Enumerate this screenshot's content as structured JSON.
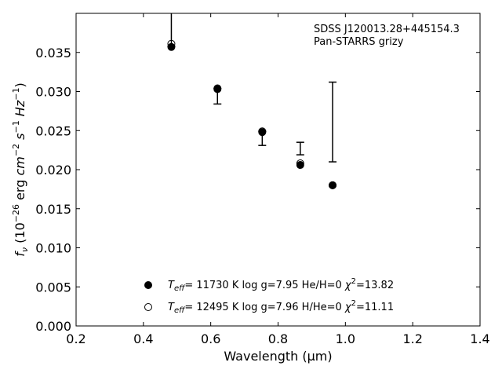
{
  "chart_data": {
    "type": "scatter",
    "xlabel": "Wavelength (μm)",
    "ylabel_parts": {
      "pre": "f",
      "sub": "ν",
      "mid": " (10",
      "exp1": "−26",
      "mid2": " erg ",
      "cm": "cm",
      "exp2": "−2",
      "s": " s",
      "exp3": "−1",
      "hz": " Hz",
      "exp4": "−1",
      "post": ")"
    },
    "annotation": [
      "SDSS J120013.28+445154.3",
      "Pan-STARRS grizy"
    ],
    "xlim": [
      0.2,
      1.4
    ],
    "ylim": [
      0.0,
      0.04
    ],
    "x_ticks": [
      "0.2",
      "0.4",
      "0.6",
      "0.8",
      "1.0",
      "1.2",
      "1.4"
    ],
    "y_ticks": [
      "0.000",
      "0.005",
      "0.010",
      "0.015",
      "0.020",
      "0.025",
      "0.030",
      "0.035"
    ],
    "observed": [
      {
        "x": 0.483,
        "y": 0.0358,
        "ylow": 0.0358,
        "yhigh": 0.0405
      },
      {
        "x": 0.62,
        "y": 0.0304,
        "ylow": 0.0284,
        "yhigh": 0.0304
      },
      {
        "x": 0.753,
        "y": 0.0249,
        "ylow": 0.0231,
        "yhigh": 0.0249
      },
      {
        "x": 0.866,
        "y": 0.0219,
        "ylow": 0.0219,
        "yhigh": 0.0235
      },
      {
        "x": 0.962,
        "y": 0.021,
        "ylow": 0.021,
        "yhigh": 0.0312
      }
    ],
    "series": [
      {
        "name": "He/H=0",
        "marker": "filled",
        "x": [
          0.483,
          0.62,
          0.753,
          0.866,
          0.962
        ],
        "y": [
          0.0357,
          0.0303,
          0.0248,
          0.0206,
          0.018
        ],
        "legend_parts": {
          "t": "T",
          "eff": "eff",
          "rest": "= 11730 K  log g=7.95  He/H=0  ",
          "chi": "χ",
          "exp": "2",
          "chival": "=13.82"
        }
      },
      {
        "name": "H/He=0",
        "marker": "open",
        "x": [
          0.483,
          0.62,
          0.753,
          0.866,
          0.962
        ],
        "y": [
          0.0361,
          0.0304,
          0.0249,
          0.0208,
          0.018
        ],
        "legend_parts": {
          "t": "T",
          "eff": "eff",
          "rest": "= 12495 K  log g=7.96  H/He=0  ",
          "chi": "χ",
          "exp": "2",
          "chival": "=11.11"
        }
      }
    ],
    "legend_position": "lower-center",
    "grid": false
  }
}
